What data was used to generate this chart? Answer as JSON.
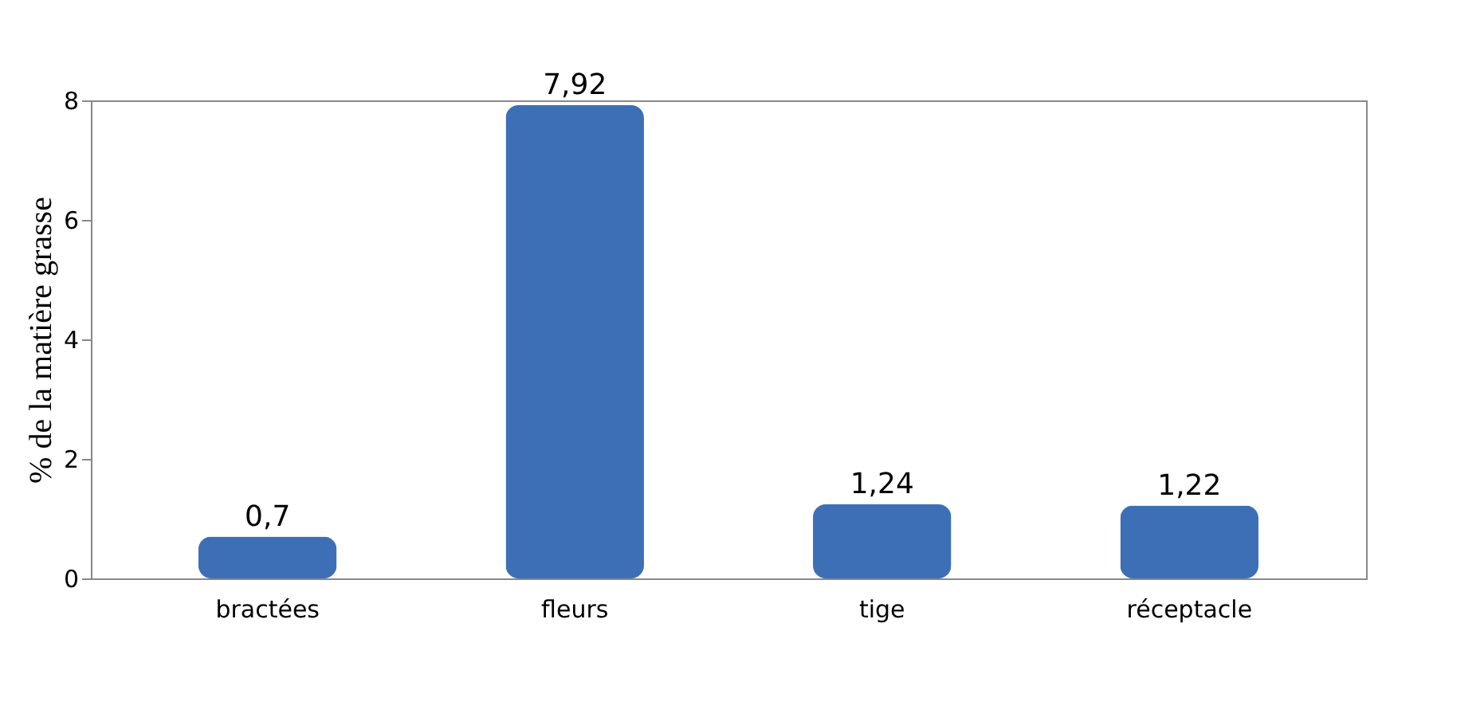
{
  "chart_data": {
    "type": "bar",
    "ylabel": "% de la matière grasse",
    "categories": [
      "bractées",
      "fleurs",
      "tige",
      "réceptacle"
    ],
    "values": [
      0.7,
      7.92,
      1.24,
      1.22
    ],
    "value_labels": [
      "0,7",
      "7,92",
      "1,24",
      "1,22"
    ],
    "color": "#3d6fb6",
    "ylim": [
      0,
      8
    ],
    "yticks": [
      0,
      2,
      4,
      6,
      8
    ],
    "grid": false
  }
}
